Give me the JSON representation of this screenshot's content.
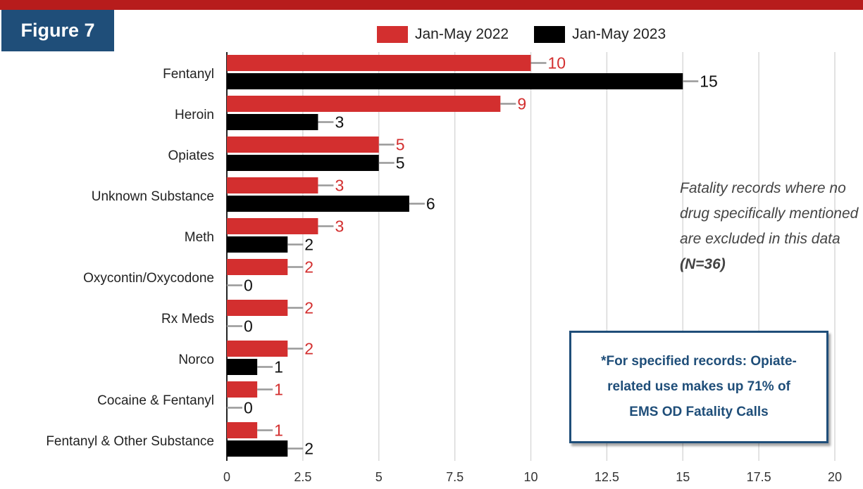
{
  "figure_label": "Figure 7",
  "colors": {
    "top_bar": "#b71c1c",
    "figure_tag_bg": "#1f4e79",
    "series_2022": "#d32f2f",
    "series_2023": "#000000",
    "connector": "#999999",
    "grid": "#d9d9d9",
    "callout_border": "#1f4e79"
  },
  "note": {
    "text": "Fatality records where no drug specifically mentioned are excluded in this data",
    "emphasis": "(N=36)"
  },
  "callout": {
    "text": "*For specified records: Opiate-related use makes up 71% of EMS OD Fatality Calls"
  },
  "chart_data": {
    "type": "bar",
    "orientation": "horizontal",
    "categories": [
      "Fentanyl",
      "Heroin",
      "Opiates",
      "Unknown Substance",
      "Meth",
      "Oxycontin/Oxycodone",
      "Rx Meds",
      "Norco",
      "Cocaine & Fentanyl",
      "Fentanyl & Other Substance"
    ],
    "series": [
      {
        "name": "Jan-May 2022",
        "values": [
          10,
          9,
          5,
          3,
          3,
          2,
          2,
          2,
          1,
          1
        ]
      },
      {
        "name": "Jan-May 2023",
        "values": [
          15,
          3,
          5,
          6,
          2,
          0,
          0,
          1,
          0,
          2
        ]
      }
    ],
    "xlim": [
      0,
      20
    ],
    "xticks": [
      "0",
      "2.5",
      "5",
      "7.5",
      "10",
      "12.5",
      "15",
      "17.5",
      "20"
    ],
    "grid": true,
    "legend_position": "top"
  }
}
